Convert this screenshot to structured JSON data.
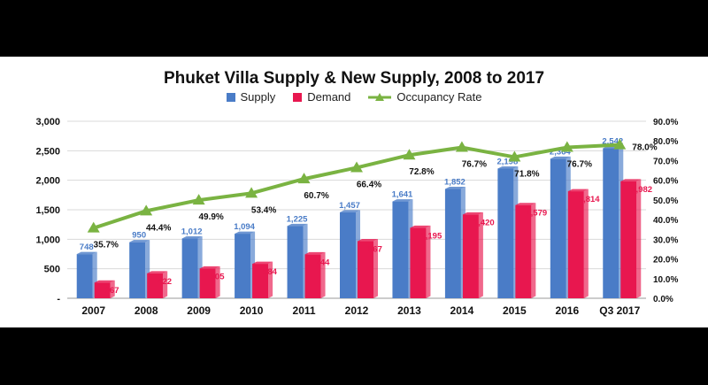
{
  "colors": {
    "supply": "#4a7cc7",
    "demand": "#e8174f",
    "occupancy": "#7ab342"
  },
  "legend": {
    "supply": "Supply",
    "demand": "Demand",
    "occupancy": "Occupancy Rate"
  },
  "chart_data": {
    "type": "bar",
    "title": "Phuket Villa Supply & New Supply, 2008 to 2017",
    "categories": [
      "2007",
      "2008",
      "2009",
      "2010",
      "2011",
      "2012",
      "2013",
      "2014",
      "2015",
      "2016",
      "Q3 2017"
    ],
    "series": [
      {
        "name": "Supply",
        "type": "bar",
        "axis": "left",
        "values": [
          748,
          950,
          1012,
          1094,
          1225,
          1457,
          1641,
          1852,
          2198,
          2364,
          2542
        ],
        "labels": [
          "748",
          "950",
          "1,012",
          "1,094",
          "1,225",
          "1,457",
          "1,641",
          "1,852",
          "2,198",
          "2,364",
          "2,542"
        ]
      },
      {
        "name": "Demand",
        "type": "bar",
        "axis": "left",
        "values": [
          267,
          422,
          505,
          584,
          744,
          967,
          1195,
          1420,
          1579,
          1814,
          1982
        ],
        "labels": [
          "267",
          "422",
          "505",
          "584",
          "744",
          "967",
          "1,195",
          "1,420",
          "1,579",
          "1,814",
          "1,982"
        ]
      },
      {
        "name": "Occupancy Rate",
        "type": "line",
        "axis": "right",
        "values": [
          35.7,
          44.4,
          49.9,
          53.4,
          60.7,
          66.4,
          72.8,
          76.7,
          71.8,
          76.7,
          78.0
        ],
        "labels": [
          "35.7%",
          "44.4%",
          "49.9%",
          "53.4%",
          "60.7%",
          "66.4%",
          "72.8%",
          "76.7%",
          "71.8%",
          "76.7%",
          "78.0%"
        ]
      }
    ],
    "ylim": [
      0,
      3000
    ],
    "y2lim": [
      0,
      90
    ],
    "yticks": [
      "-",
      "500",
      "1,000",
      "1,500",
      "2,000",
      "2,500",
      "3,000"
    ],
    "y2ticks": [
      "0.0%",
      "10.0%",
      "20.0%",
      "30.0%",
      "40.0%",
      "50.0%",
      "60.0%",
      "70.0%",
      "80.0%",
      "90.0%"
    ],
    "legend_position": "top",
    "grid": true
  }
}
